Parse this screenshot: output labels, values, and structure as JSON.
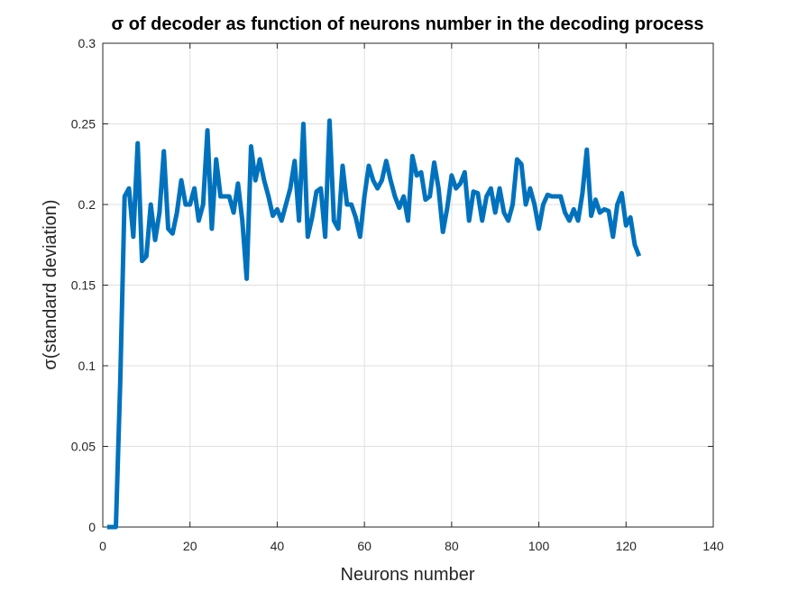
{
  "chart_data": {
    "type": "line",
    "title": "σ of decoder as function of neurons number in the decoding process",
    "xlabel": "Neurons number",
    "ylabel": "σ(standard deviation)",
    "x": [
      1,
      2,
      3,
      4,
      5,
      6,
      7,
      8,
      9,
      10,
      11,
      12,
      13,
      14,
      15,
      16,
      17,
      18,
      19,
      20,
      21,
      22,
      23,
      24,
      25,
      26,
      27,
      28,
      29,
      30,
      31,
      32,
      33,
      34,
      35,
      36,
      37,
      38,
      39,
      40,
      41,
      42,
      43,
      44,
      45,
      46,
      47,
      48,
      49,
      50,
      51,
      52,
      53,
      54,
      55,
      56,
      57,
      58,
      59,
      60,
      61,
      62,
      63,
      64,
      65,
      66,
      67,
      68,
      69,
      70,
      71,
      72,
      73,
      74,
      75,
      76,
      77,
      78,
      79,
      80,
      81,
      82,
      83,
      84,
      85,
      86,
      87,
      88,
      89,
      90,
      91,
      92,
      93,
      94,
      95,
      96,
      97,
      98,
      99,
      100,
      101,
      102,
      103,
      104,
      105,
      106,
      107,
      108,
      109,
      110,
      111,
      112,
      113,
      114,
      115,
      116,
      117,
      118,
      119,
      120,
      121,
      122,
      123
    ],
    "series": [
      {
        "name": "sigma",
        "color": "#0072BD",
        "values": [
          0,
          0,
          0,
          0.09,
          0.205,
          0.21,
          0.18,
          0.238,
          0.165,
          0.168,
          0.2,
          0.178,
          0.195,
          0.233,
          0.185,
          0.182,
          0.195,
          0.215,
          0.2,
          0.2,
          0.21,
          0.19,
          0.2,
          0.246,
          0.185,
          0.228,
          0.205,
          0.205,
          0.205,
          0.195,
          0.213,
          0.19,
          0.154,
          0.236,
          0.215,
          0.228,
          0.215,
          0.205,
          0.193,
          0.197,
          0.19,
          0.2,
          0.21,
          0.227,
          0.19,
          0.25,
          0.18,
          0.192,
          0.208,
          0.21,
          0.18,
          0.252,
          0.19,
          0.185,
          0.224,
          0.2,
          0.2,
          0.192,
          0.18,
          0.205,
          0.224,
          0.215,
          0.21,
          0.215,
          0.227,
          0.215,
          0.205,
          0.198,
          0.205,
          0.19,
          0.23,
          0.218,
          0.22,
          0.203,
          0.205,
          0.226,
          0.21,
          0.183,
          0.198,
          0.218,
          0.21,
          0.213,
          0.22,
          0.19,
          0.208,
          0.207,
          0.19,
          0.205,
          0.21,
          0.195,
          0.21,
          0.195,
          0.19,
          0.2,
          0.228,
          0.225,
          0.2,
          0.21,
          0.2,
          0.185,
          0.2,
          0.206,
          0.205,
          0.205,
          0.205,
          0.195,
          0.19,
          0.197,
          0.19,
          0.207,
          0.234,
          0.193,
          0.203,
          0.195,
          0.197,
          0.196,
          0.18,
          0.2,
          0.207,
          0.187,
          0.192,
          0.175,
          0.168
        ]
      }
    ],
    "xlim": [
      0,
      140
    ],
    "xticks": [
      0,
      20,
      40,
      60,
      80,
      100,
      120,
      140
    ],
    "ylim": [
      0,
      0.3
    ],
    "yticks": [
      0,
      0.05,
      0.1,
      0.15,
      0.2,
      0.25,
      0.3
    ],
    "grid": true
  }
}
